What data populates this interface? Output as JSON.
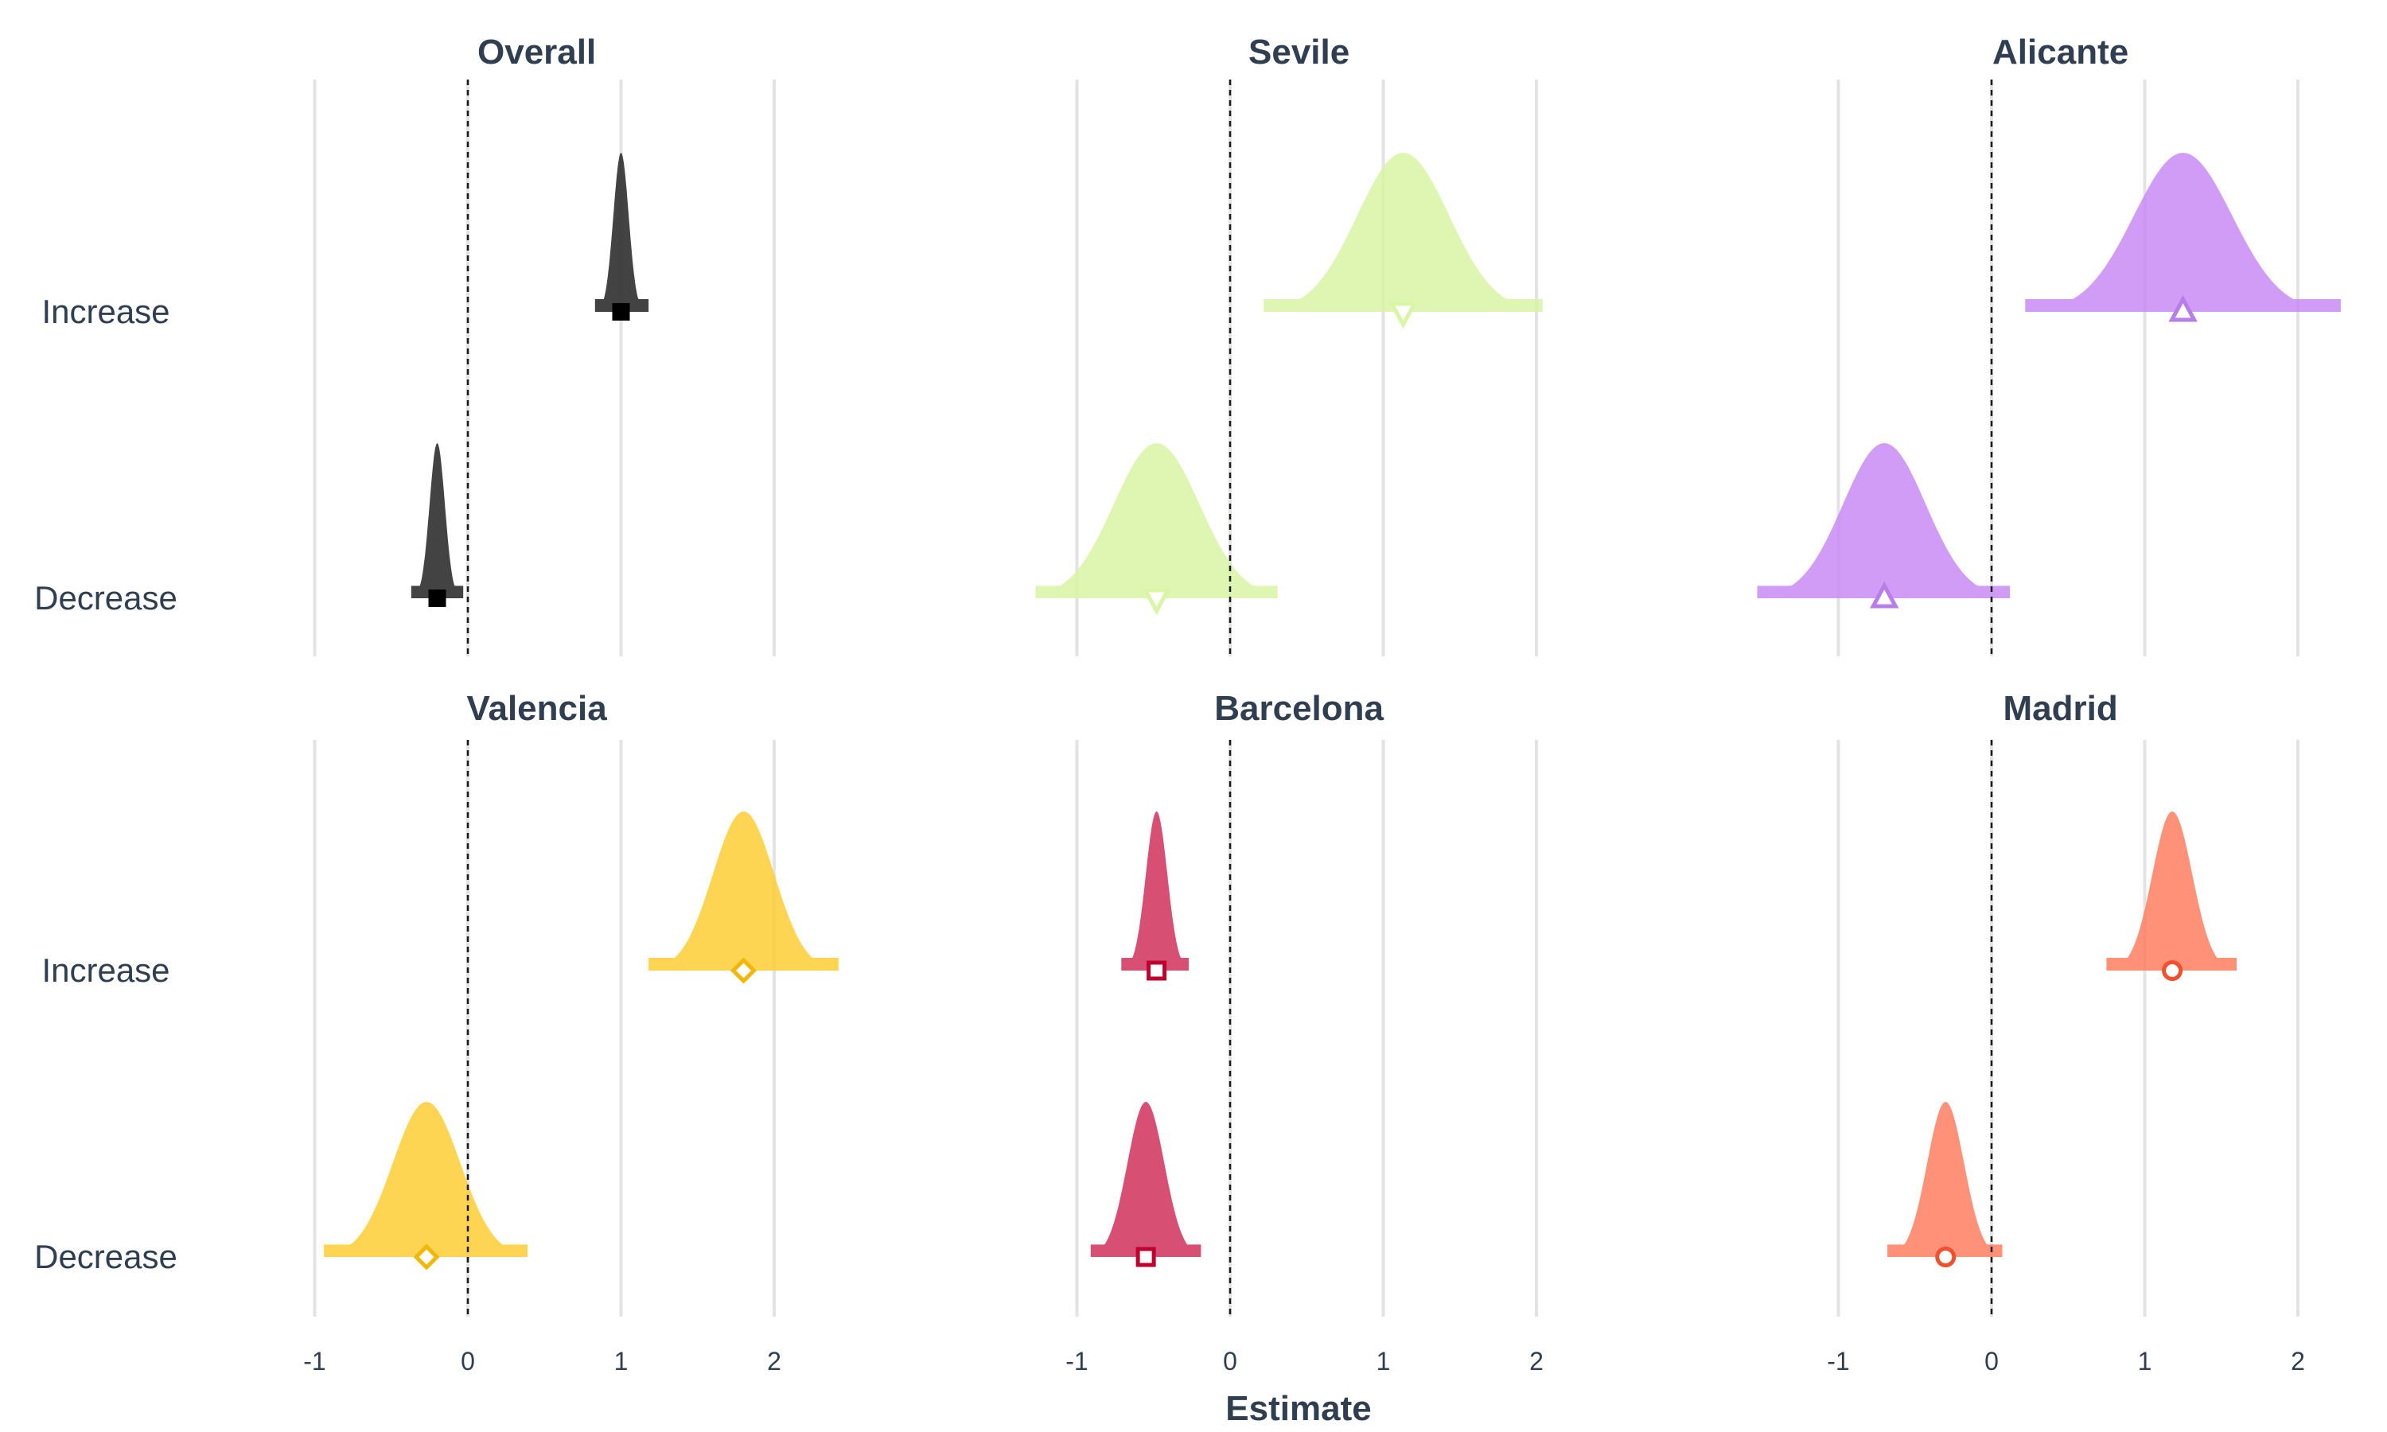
{
  "chart_data": {
    "type": "ridgeline",
    "xlabel": "Estimate",
    "ylabel": "",
    "xlim": [
      -1.1,
      2.3
    ],
    "xticks": [
      -1,
      0,
      1,
      2
    ],
    "categories": [
      "Increase",
      "Decrease"
    ],
    "reference_line": 0,
    "grid": true,
    "panels": [
      {
        "name": "Overall",
        "color": "#333333",
        "marker": "square-filled",
        "marker_color": "#000000",
        "series": [
          {
            "category": "Increase",
            "estimate": 1.0,
            "sd": 0.05,
            "range": [
              0.83,
              1.18
            ]
          },
          {
            "category": "Decrease",
            "estimate": -0.2,
            "sd": 0.05,
            "range": [
              -0.37,
              -0.03
            ]
          }
        ]
      },
      {
        "name": "Sevile",
        "color": "#d9f5a6",
        "marker": "triangle-down",
        "marker_color": "#d9f5a6",
        "series": [
          {
            "category": "Increase",
            "estimate": 1.13,
            "sd": 0.3,
            "range": [
              0.22,
              2.04
            ]
          },
          {
            "category": "Decrease",
            "estimate": -0.48,
            "sd": 0.28,
            "range": [
              -1.27,
              0.31
            ]
          }
        ]
      },
      {
        "name": "Alicante",
        "color": "#c98bf4",
        "marker": "triangle-up",
        "marker_color": "#b87de8",
        "series": [
          {
            "category": "Increase",
            "estimate": 1.25,
            "sd": 0.32,
            "range": [
              0.22,
              2.28
            ]
          },
          {
            "category": "Decrease",
            "estimate": -0.7,
            "sd": 0.27,
            "range": [
              -1.53,
              0.12
            ]
          }
        ]
      },
      {
        "name": "Valencia",
        "color": "#fecd35",
        "marker": "diamond",
        "marker_color": "#f2b705",
        "series": [
          {
            "category": "Increase",
            "estimate": 1.8,
            "sd": 0.2,
            "range": [
              1.18,
              2.42
            ]
          },
          {
            "category": "Decrease",
            "estimate": -0.27,
            "sd": 0.22,
            "range": [
              -0.94,
              0.39
            ]
          }
        ]
      },
      {
        "name": "Barcelona",
        "color": "#d0305a",
        "marker": "square-open",
        "marker_color": "#c0002f",
        "series": [
          {
            "category": "Increase",
            "estimate": -0.48,
            "sd": 0.07,
            "range": [
              -0.71,
              -0.27
            ]
          },
          {
            "category": "Decrease",
            "estimate": -0.55,
            "sd": 0.12,
            "range": [
              -0.91,
              -0.19
            ]
          }
        ]
      },
      {
        "name": "Madrid",
        "color": "#ff7e62",
        "marker": "circle-open",
        "marker_color": "#f0502d",
        "series": [
          {
            "category": "Increase",
            "estimate": 1.18,
            "sd": 0.13,
            "range": [
              0.75,
              1.6
            ]
          },
          {
            "category": "Decrease",
            "estimate": -0.3,
            "sd": 0.12,
            "range": [
              -0.68,
              0.07
            ]
          }
        ]
      }
    ]
  }
}
